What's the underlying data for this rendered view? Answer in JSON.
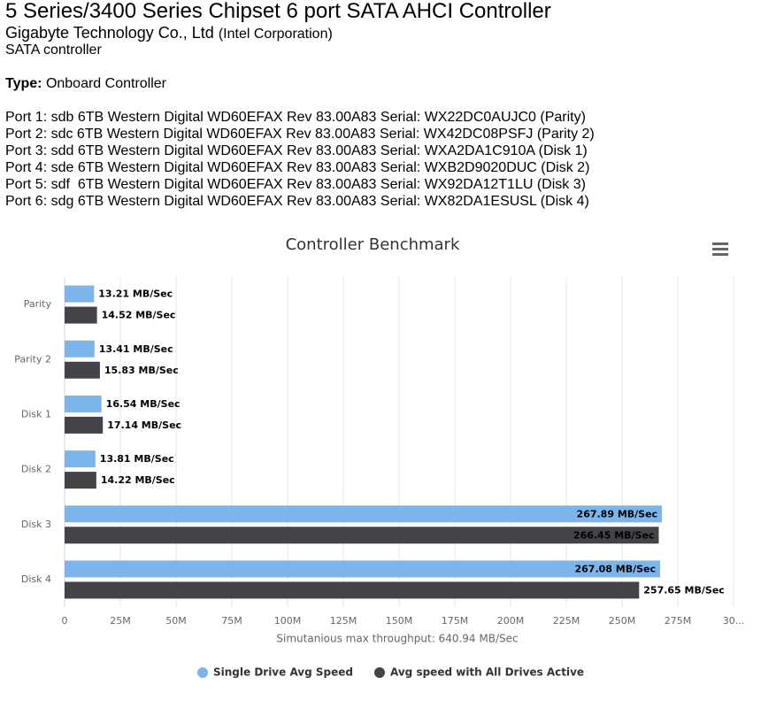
{
  "header": {
    "title": "5 Series/3400 Series Chipset 6 port SATA AHCI Controller",
    "vendor": "Gigabyte Technology Co., Ltd",
    "vendor_parent": "(Intel Corporation)",
    "class": "SATA controller",
    "type_label": "Type:",
    "type_value": "Onboard Controller"
  },
  "ports": [
    "Port 1: sdb 6TB Western Digital WD60EFAX Rev 83.00A83 Serial: WX22DC0AUJC0 (Parity)",
    "Port 2: sdc 6TB Western Digital WD60EFAX Rev 83.00A83 Serial: WX42DC08PSFJ (Parity 2)",
    "Port 3: sdd 6TB Western Digital WD60EFAX Rev 83.00A83 Serial: WXA2DA1C910A (Disk 1)",
    "Port 4: sde 6TB Western Digital WD60EFAX Rev 83.00A83 Serial: WXB2D9020DUC (Disk 2)",
    "Port 5: sdf  6TB Western Digital WD60EFAX Rev 83.00A83 Serial: WX92DA12T1LU (Disk 3)",
    "Port 6: sdg 6TB Western Digital WD60EFAX Rev 83.00A83 Serial: WX82DA1ESUSL (Disk 4)"
  ],
  "chart_data": {
    "type": "bar",
    "orientation": "horizontal",
    "title": "Controller Benchmark",
    "categories": [
      "Parity",
      "Parity 2",
      "Disk 1",
      "Disk 2",
      "Disk 3",
      "Disk 4"
    ],
    "series": [
      {
        "name": "Single Drive Avg Speed",
        "color": "#7cb5ec",
        "values": [
          13.21,
          13.41,
          16.54,
          13.81,
          267.89,
          267.08
        ],
        "value_labels": [
          "13.21 MB/Sec",
          "13.41 MB/Sec",
          "16.54 MB/Sec",
          "13.81 MB/Sec",
          "267.89 MB/Sec",
          "267.08 MB/Sec"
        ]
      },
      {
        "name": "Avg speed with All Drives Active",
        "color": "#434348",
        "values": [
          14.52,
          15.83,
          17.14,
          14.22,
          266.45,
          257.65
        ],
        "value_labels": [
          "14.52 MB/Sec",
          "15.83 MB/Sec",
          "17.14 MB/Sec",
          "14.22 MB/Sec",
          "266.45 MB/Sec",
          "257.65 MB/Sec"
        ]
      }
    ],
    "xlim": [
      0,
      300
    ],
    "xticks": [
      0,
      {
        "value": 25,
        "label": "25M"
      },
      {
        "value": 50,
        "label": "50M"
      },
      {
        "value": 75,
        "label": "75M"
      },
      {
        "value": 100,
        "label": "100M"
      },
      {
        "value": 125,
        "label": "125M"
      },
      {
        "value": 150,
        "label": "150M"
      },
      {
        "value": 175,
        "label": "175M"
      },
      {
        "value": 200,
        "label": "200M"
      },
      {
        "value": 225,
        "label": "225M"
      },
      {
        "value": 250,
        "label": "250M"
      },
      {
        "value": 275,
        "label": "275M"
      },
      {
        "value": 300,
        "label": "30..."
      }
    ],
    "xlabel": "Simutanious max throughput: 640.94 MB/Sec",
    "grid": true,
    "legend": "bottom"
  }
}
